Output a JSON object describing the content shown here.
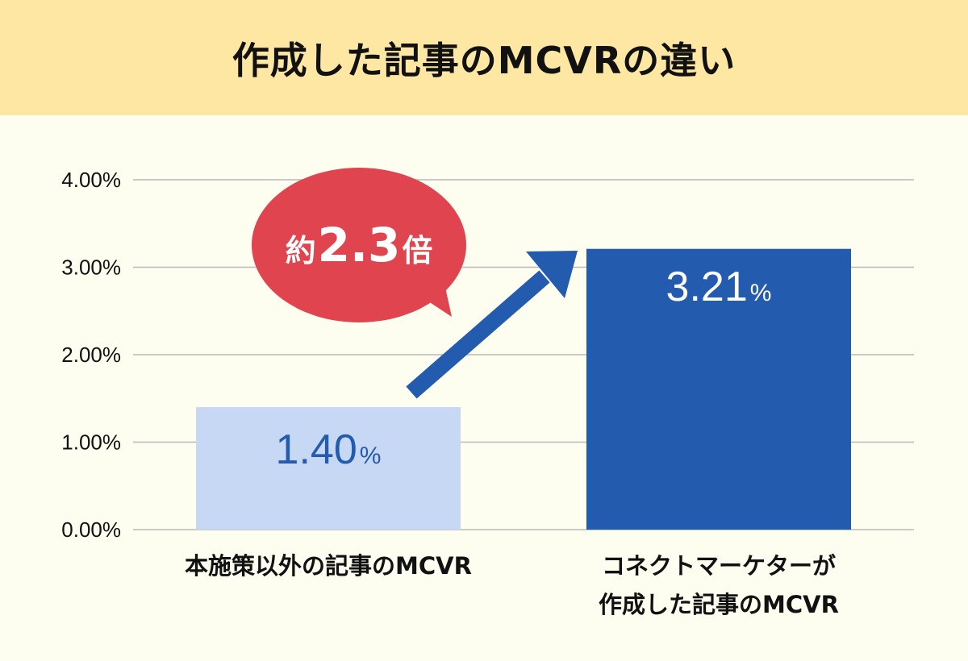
{
  "title": "作成した記事のMCVRの違い",
  "callout": {
    "prefix": "約",
    "value": "2.3",
    "suffix": "倍"
  },
  "colors": {
    "header_bg": "#fde7a3",
    "page_bg": "#fdfdf0",
    "bar_light": "#c6d8f4",
    "bar_dark": "#235baf",
    "value_light": "#235baf",
    "value_dark": "#ffffff",
    "bubble": "#e0454f",
    "arrow": "#235baf",
    "grid": "#b9b9b9"
  },
  "chart_data": {
    "type": "bar",
    "title": "作成した記事のMCVRの違い",
    "categories": [
      [
        "本施策以外の記事のMCVR"
      ],
      [
        "コネクトマーケターが",
        "作成した記事のMCVR"
      ]
    ],
    "values": [
      1.4,
      3.21
    ],
    "value_labels": [
      "1.40",
      "3.21"
    ],
    "value_unit": "%",
    "ylim": [
      0,
      4
    ],
    "yticks": [
      0,
      1,
      2,
      3,
      4
    ],
    "ytick_labels": [
      "0.00%",
      "1.00%",
      "2.00%",
      "3.00%",
      "4.00%"
    ],
    "grid": true,
    "annotation": "約2.3倍"
  }
}
